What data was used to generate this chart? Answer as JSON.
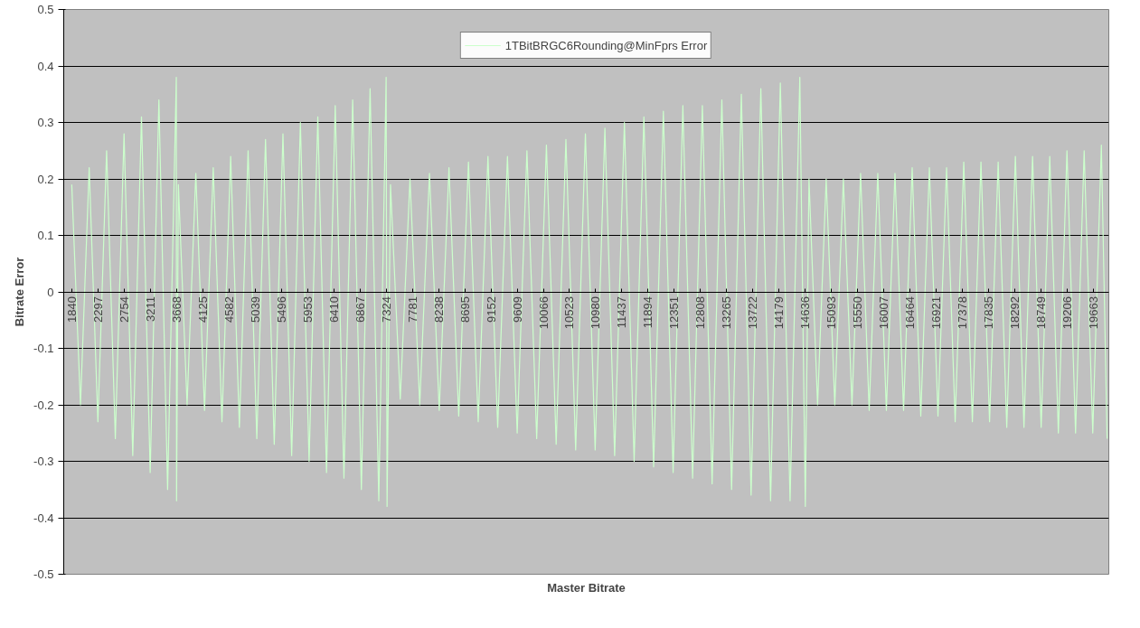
{
  "chart_data": {
    "type": "line",
    "xlabel": "Master Bitrate",
    "ylabel": "Bitrate Error",
    "xlim": [
      1700,
      19930
    ],
    "ylim": [
      -0.5,
      0.5
    ],
    "xticks": [
      1840,
      2297,
      2754,
      3211,
      3668,
      4125,
      4582,
      5039,
      5496,
      5953,
      6410,
      6867,
      7324,
      7781,
      8238,
      8695,
      9152,
      9609,
      10066,
      10523,
      10980,
      11437,
      11894,
      12351,
      12808,
      13265,
      13722,
      14179,
      14636,
      15093,
      15550,
      16007,
      16464,
      16921,
      17378,
      17835,
      18292,
      18749,
      19206,
      19663
    ],
    "yticks": [
      -0.5,
      -0.4,
      -0.3,
      -0.2,
      -0.1,
      0,
      0.1,
      0.2,
      0.3,
      0.4,
      0.5
    ],
    "grid": "y",
    "legend": "top",
    "marker": "none",
    "line_style": "solid",
    "series": [
      {
        "name": "1TBitBRGC6Rounding@MinFprs Error",
        "color": "#ccffcc",
        "x": [
          1840,
          1992,
          2144,
          2296,
          2448,
          2600,
          2752,
          2904,
          3056,
          3208,
          3360,
          3512,
          3664,
          3668,
          3700,
          3852,
          4004,
          4156,
          4308,
          4460,
          4612,
          4764,
          4916,
          5068,
          5220,
          5372,
          5524,
          5676,
          5828,
          5980,
          6132,
          6284,
          6436,
          6588,
          6740,
          6892,
          7044,
          7196,
          7324,
          7340,
          7400,
          7570,
          7740,
          7910,
          8080,
          8250,
          8420,
          8590,
          8760,
          8930,
          9100,
          9270,
          9440,
          9610,
          9780,
          9950,
          10120,
          10290,
          10460,
          10630,
          10800,
          10970,
          11140,
          11310,
          11480,
          11650,
          11820,
          11990,
          12160,
          12330,
          12500,
          12670,
          12840,
          13010,
          13180,
          13350,
          13520,
          13690,
          13860,
          14030,
          14200,
          14370,
          14540,
          14636,
          14700,
          14850,
          15000,
          15150,
          15300,
          15450,
          15600,
          15750,
          15900,
          16050,
          16200,
          16350,
          16500,
          16650,
          16800,
          16950,
          17100,
          17250,
          17400,
          17550,
          17700,
          17850,
          18000,
          18150,
          18300,
          18450,
          18600,
          18750,
          18900,
          19050,
          19200,
          19350,
          19500,
          19650,
          19800,
          19900
        ],
        "values": [
          0.19,
          -0.2,
          0.22,
          -0.23,
          0.25,
          -0.26,
          0.28,
          -0.29,
          0.31,
          -0.32,
          0.34,
          -0.35,
          0.38,
          -0.37,
          0.19,
          -0.2,
          0.21,
          -0.21,
          0.22,
          -0.23,
          0.24,
          -0.24,
          0.25,
          -0.26,
          0.27,
          -0.27,
          0.28,
          -0.29,
          0.3,
          -0.3,
          0.31,
          -0.32,
          0.33,
          -0.33,
          0.34,
          -0.35,
          0.36,
          -0.37,
          0.38,
          -0.38,
          0.19,
          -0.19,
          0.2,
          -0.2,
          0.21,
          -0.21,
          0.22,
          -0.22,
          0.23,
          -0.23,
          0.24,
          -0.24,
          0.24,
          -0.25,
          0.25,
          -0.26,
          0.26,
          -0.27,
          0.27,
          -0.28,
          0.28,
          -0.28,
          0.29,
          -0.29,
          0.3,
          -0.3,
          0.31,
          -0.31,
          0.32,
          -0.32,
          0.33,
          -0.33,
          0.33,
          -0.34,
          0.34,
          -0.35,
          0.35,
          -0.36,
          0.36,
          -0.37,
          0.37,
          -0.37,
          0.38,
          -0.38,
          0.2,
          -0.2,
          0.2,
          -0.2,
          0.2,
          -0.2,
          0.21,
          -0.21,
          0.21,
          -0.21,
          0.21,
          -0.21,
          0.22,
          -0.22,
          0.22,
          -0.22,
          0.22,
          -0.23,
          0.23,
          -0.23,
          0.23,
          -0.23,
          0.23,
          -0.24,
          0.24,
          -0.24,
          0.24,
          -0.24,
          0.24,
          -0.25,
          0.25,
          -0.25,
          0.25,
          -0.25,
          0.26,
          -0.26
        ]
      }
    ]
  }
}
